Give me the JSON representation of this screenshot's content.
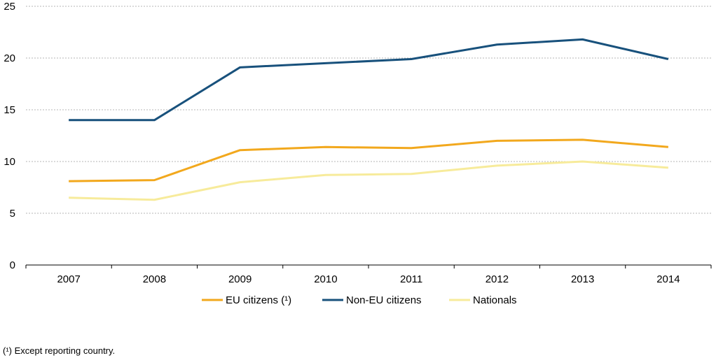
{
  "chart_data": {
    "type": "line",
    "categories": [
      "2007",
      "2008",
      "2009",
      "2010",
      "2011",
      "2012",
      "2013",
      "2014"
    ],
    "ylim": [
      0,
      25
    ],
    "yticks": [
      0,
      5,
      10,
      15,
      20,
      25
    ],
    "grid": true,
    "legend_position": "bottom",
    "series": [
      {
        "name": "EU citizens (¹)",
        "color": "#F2A81D",
        "values": [
          8.1,
          8.2,
          11.1,
          11.4,
          11.3,
          12.0,
          12.1,
          11.4
        ]
      },
      {
        "name": "Non-EU citizens",
        "color": "#18517C",
        "values": [
          14.0,
          14.0,
          19.1,
          19.5,
          19.9,
          21.3,
          21.8,
          19.9
        ]
      },
      {
        "name": "Nationals",
        "color": "#F7EB9B",
        "values": [
          6.5,
          6.3,
          8.0,
          8.7,
          8.8,
          9.6,
          10.0,
          9.4
        ]
      }
    ],
    "footnote": "(¹) Except reporting country."
  }
}
